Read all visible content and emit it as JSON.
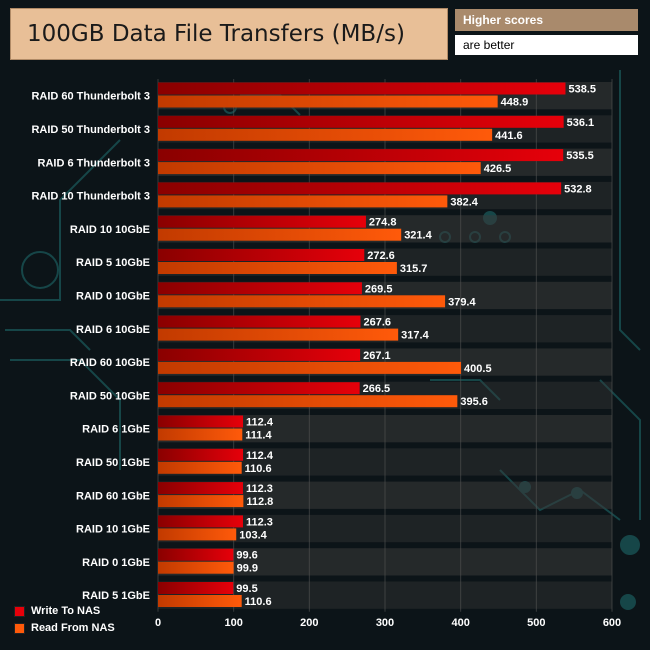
{
  "header": {
    "title": "100GB Data File Transfers (MB/s)",
    "note_line1": "Higher scores",
    "note_line2": "are better"
  },
  "colors": {
    "write": "#e6000a",
    "read": "#ff5a0a",
    "title_bg": "#e8bf97",
    "note_bg": "#a98a6c"
  },
  "chart_data": {
    "type": "bar",
    "orientation": "horizontal",
    "title": "100GB Data File Transfers (MB/s)",
    "xlabel": "",
    "ylabel": "",
    "xlim": [
      0,
      600
    ],
    "x_ticks": [
      0,
      100,
      200,
      300,
      400,
      500,
      600
    ],
    "categories": [
      "RAID 60 Thunderbolt 3",
      "RAID 50 Thunderbolt 3",
      "RAID 6 Thunderbolt 3",
      "RAID 10 Thunderbolt 3",
      "RAID 10 10GbE",
      "RAID 5 10GbE",
      "RAID 0 10GbE",
      "RAID 6 10GbE",
      "RAID 60 10GbE",
      "RAID 50 10GbE",
      "RAID 6 1GbE",
      "RAID 50 1GbE",
      "RAID 60 1GbE",
      "RAID 10 1GbE",
      "RAID 0 1GbE",
      "RAID 5 1GbE"
    ],
    "series": [
      {
        "name": "Write To NAS",
        "values": [
          538.5,
          536.1,
          535.5,
          532.8,
          274.8,
          272.6,
          269.5,
          267.6,
          267.1,
          266.5,
          112.4,
          112.4,
          112.3,
          112.3,
          99.6,
          99.5
        ]
      },
      {
        "name": "Read From NAS",
        "values": [
          448.9,
          441.6,
          426.5,
          382.4,
          321.4,
          315.7,
          379.4,
          317.4,
          400.5,
          395.6,
          111.4,
          110.6,
          112.8,
          103.4,
          99.9,
          110.6
        ]
      }
    ],
    "legend": [
      "Write To NAS",
      "Read From NAS"
    ],
    "legend_position": "bottom-left",
    "grid": true
  }
}
